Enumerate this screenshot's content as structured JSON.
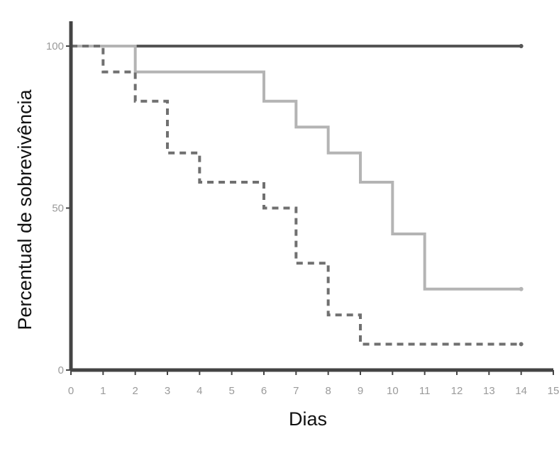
{
  "chart_data": {
    "type": "line",
    "step": true,
    "title": "",
    "xlabel": "Dias",
    "ylabel": "Percentual de sobrevivência",
    "xlim": [
      0,
      15
    ],
    "ylim": [
      0,
      100
    ],
    "x_ticks": [
      "0",
      "1",
      "2",
      "3",
      "4",
      "5",
      "6",
      "7",
      "8",
      "9",
      "10",
      "11",
      "12",
      "13",
      "14",
      "15"
    ],
    "y_ticks": [
      {
        "value": 0,
        "label": "0"
      },
      {
        "value": 50,
        "label": "50"
      },
      {
        "value": 100,
        "label": "100"
      }
    ],
    "grid": false,
    "series": [
      {
        "color": "#555555",
        "style": "solid",
        "x": [
          0,
          14
        ],
        "y": [
          100,
          100
        ]
      },
      {
        "color": "#b4b4b4",
        "style": "solid",
        "x": [
          0,
          2,
          6,
          7,
          8,
          9,
          10,
          11,
          14
        ],
        "y": [
          100,
          92,
          83,
          75,
          67,
          58,
          42,
          25,
          25
        ]
      },
      {
        "color": "#707070",
        "style": "dashed",
        "x": [
          0,
          1,
          2,
          3,
          4,
          6,
          7,
          8,
          9,
          14
        ],
        "y": [
          100,
          92,
          83,
          67,
          58,
          50,
          33,
          17,
          8,
          8
        ]
      }
    ]
  }
}
